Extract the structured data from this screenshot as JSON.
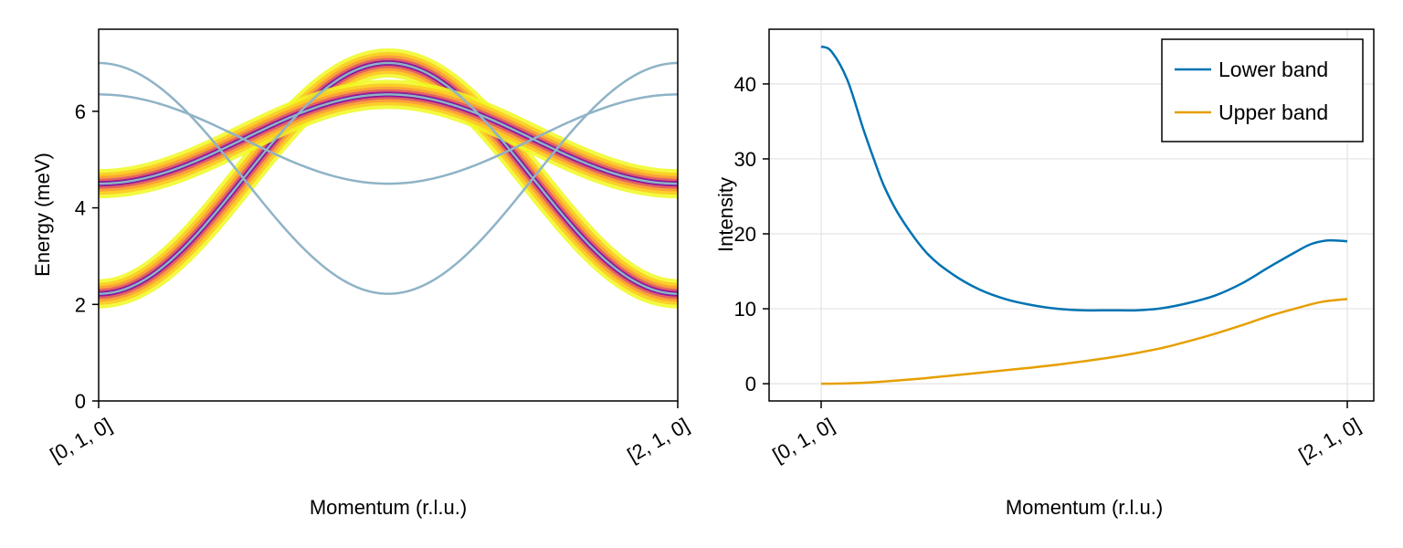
{
  "chart_data": [
    {
      "type": "heatmap",
      "xlabel": "Momentum (r.l.u.)",
      "ylabel": "Energy (meV)",
      "xtick_labels": [
        "[0, 1, 0]",
        "[2, 1, 0]"
      ],
      "x": [
        0,
        1
      ],
      "ylim": [
        0,
        7.7
      ],
      "yticks": [
        0,
        2,
        4,
        6
      ],
      "grid": false,
      "colormap": "plasma",
      "line_color": "#8fb3c7",
      "dispersion_bands": [
        {
          "name": "",
          "energy_at_start": 2.22,
          "energy_at_mid": 7.0,
          "energy_at_end": 2.22,
          "has_intensity": true
        },
        {
          "name": "",
          "energy_at_start": 4.5,
          "energy_at_mid": 6.35,
          "energy_at_end": 4.5,
          "has_intensity": true
        },
        {
          "name": "",
          "energy_at_start": 6.35,
          "energy_at_mid": 4.5,
          "energy_at_end": 6.35,
          "has_intensity": false
        },
        {
          "name": "",
          "energy_at_start": 7.0,
          "energy_at_mid": 2.22,
          "energy_at_end": 7.0,
          "has_intensity": false
        }
      ]
    },
    {
      "type": "line",
      "xlabel": "Momentum (r.l.u.)",
      "ylabel": "Intensity",
      "xtick_labels": [
        "[0, 1, 0]",
        "[2, 1, 0]"
      ],
      "ylim": [
        -2.3,
        47.3
      ],
      "yticks": [
        0,
        10,
        20,
        30,
        40
      ],
      "grid": true,
      "legend_position": "top-right",
      "series": [
        {
          "name": "Lower band",
          "color": "#0072b2",
          "x": [
            0,
            0.02,
            0.05,
            0.08,
            0.1,
            0.12,
            0.15,
            0.2,
            0.25,
            0.3,
            0.35,
            0.4,
            0.45,
            0.5,
            0.55,
            0.6,
            0.65,
            0.7,
            0.75,
            0.8,
            0.85,
            0.9,
            0.93,
            0.96,
            0.98,
            1.0
          ],
          "y": [
            45.0,
            44.3,
            40.5,
            34.0,
            30.0,
            26.3,
            22.3,
            17.5,
            14.6,
            12.6,
            11.3,
            10.5,
            10.0,
            9.8,
            9.8,
            9.8,
            10.1,
            10.8,
            11.8,
            13.4,
            15.5,
            17.5,
            18.6,
            19.1,
            19.1,
            19.0
          ]
        },
        {
          "name": "Upper band",
          "color": "#e69f00",
          "x": [
            0,
            0.05,
            0.1,
            0.15,
            0.2,
            0.25,
            0.3,
            0.35,
            0.4,
            0.45,
            0.5,
            0.55,
            0.6,
            0.65,
            0.7,
            0.75,
            0.8,
            0.85,
            0.9,
            0.95,
            1.0
          ],
          "y": [
            0.0,
            0.05,
            0.2,
            0.45,
            0.75,
            1.1,
            1.45,
            1.8,
            2.15,
            2.55,
            3.0,
            3.5,
            4.1,
            4.8,
            5.7,
            6.7,
            7.8,
            9.0,
            10.0,
            10.9,
            11.3
          ]
        }
      ]
    }
  ]
}
